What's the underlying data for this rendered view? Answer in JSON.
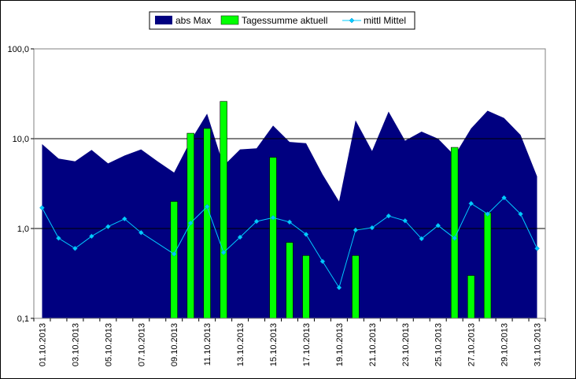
{
  "chart_data": {
    "type": "area+bar+line",
    "title": "",
    "xlabel": "",
    "ylabel": "",
    "y_scale": "log",
    "ylim": [
      0.1,
      100
    ],
    "y_ticks": [
      {
        "value": 0.1,
        "label": "0,1"
      },
      {
        "value": 1,
        "label": "1,0"
      },
      {
        "value": 10,
        "label": "10,0"
      },
      {
        "value": 100,
        "label": "100,0"
      }
    ],
    "grid": "horizontal major lines",
    "legend_position": "top",
    "x": [
      "01.10.2013",
      "02.10.2013",
      "03.10.2013",
      "04.10.2013",
      "05.10.2013",
      "06.10.2013",
      "07.10.2013",
      "08.10.2013",
      "09.10.2013",
      "10.10.2013",
      "11.10.2013",
      "12.10.2013",
      "13.10.2013",
      "14.10.2013",
      "15.10.2013",
      "16.10.2013",
      "17.10.2013",
      "18.10.2013",
      "19.10.2013",
      "20.10.2013",
      "21.10.2013",
      "22.10.2013",
      "23.10.2013",
      "24.10.2013",
      "25.10.2013",
      "26.10.2013",
      "27.10.2013",
      "28.10.2013",
      "29.10.2013",
      "30.10.2013",
      "31.10.2013"
    ],
    "x_tick_labels": [
      "01.10.2013",
      "03.10.2013",
      "05.10.2013",
      "07.10.2013",
      "09.10.2013",
      "11.10.2013",
      "13.10.2013",
      "15.10.2013",
      "17.10.2013",
      "19.10.2013",
      "21.10.2013",
      "23.10.2013",
      "25.10.2013",
      "27.10.2013",
      "29.10.2013",
      "31.10.2013"
    ],
    "series": [
      {
        "name": "abs Max",
        "type": "area",
        "color": "#000080",
        "values": [
          8.7,
          6.0,
          5.6,
          7.5,
          5.3,
          6.5,
          7.6,
          5.6,
          4.2,
          9.5,
          19.0,
          5.0,
          7.6,
          7.8,
          14.0,
          9.2,
          8.9,
          4.0,
          2.0,
          16.0,
          7.3,
          20.0,
          9.5,
          12.0,
          10.0,
          6.5,
          13.0,
          20.5,
          17.0,
          11.0,
          3.8
        ]
      },
      {
        "name": "Tagessumme aktuell",
        "type": "bar",
        "color": "#00ff00",
        "values": [
          null,
          null,
          null,
          null,
          null,
          null,
          null,
          null,
          2.0,
          11.5,
          13.0,
          26.0,
          null,
          null,
          6.2,
          0.7,
          0.5,
          null,
          null,
          0.5,
          null,
          null,
          null,
          null,
          null,
          8.0,
          0.3,
          1.5,
          null,
          null,
          null
        ]
      },
      {
        "name": "mittl Mittel",
        "type": "line",
        "color": "#00ccff",
        "values": [
          1.7,
          0.78,
          0.6,
          0.82,
          1.05,
          1.28,
          0.9,
          null,
          0.52,
          1.15,
          1.75,
          0.54,
          0.8,
          1.2,
          1.32,
          1.18,
          0.86,
          0.43,
          0.22,
          0.96,
          1.02,
          1.38,
          1.22,
          0.77,
          1.08,
          0.78,
          1.9,
          1.45,
          2.2,
          1.45,
          0.6
        ]
      }
    ]
  }
}
